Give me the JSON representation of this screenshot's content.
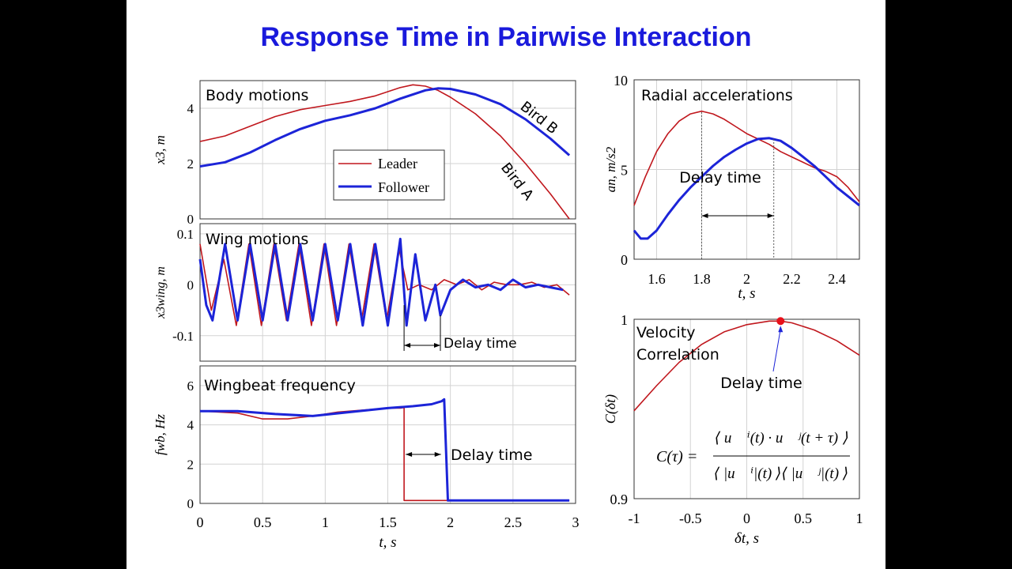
{
  "title": "Response Time in Pairwise Interaction",
  "colors": {
    "leader": "#c0171d",
    "follower": "#1c24d8",
    "title": "#1a1adc",
    "grid": "#d3d3d3"
  },
  "chart_data": [
    {
      "id": "body",
      "type": "line",
      "panel_title": "Body motions",
      "ylabel": "x3, m",
      "xlim": [
        0,
        3
      ],
      "ylim": [
        0,
        5
      ],
      "yticks": [
        "0",
        "2",
        "4"
      ],
      "legend": [
        "Leader",
        "Follower"
      ],
      "legend_position": "center",
      "annotations": [
        "Bird B",
        "Bird A"
      ],
      "grid": true,
      "series": [
        {
          "name": "Leader",
          "x": [
            0,
            0.2,
            0.4,
            0.6,
            0.8,
            1.0,
            1.2,
            1.4,
            1.6,
            1.7,
            1.8,
            1.9,
            2.0,
            2.2,
            2.4,
            2.6,
            2.8,
            2.95
          ],
          "y": [
            2.8,
            3.0,
            3.35,
            3.7,
            3.95,
            4.1,
            4.25,
            4.45,
            4.75,
            4.85,
            4.8,
            4.65,
            4.4,
            3.8,
            3.0,
            2.0,
            0.9,
            0.0
          ]
        },
        {
          "name": "Follower",
          "x": [
            0,
            0.2,
            0.4,
            0.6,
            0.8,
            1.0,
            1.2,
            1.4,
            1.6,
            1.8,
            1.9,
            2.0,
            2.2,
            2.4,
            2.6,
            2.8,
            2.95
          ],
          "y": [
            1.9,
            2.05,
            2.4,
            2.85,
            3.25,
            3.55,
            3.75,
            4.0,
            4.35,
            4.65,
            4.72,
            4.7,
            4.5,
            4.15,
            3.6,
            2.9,
            2.3
          ]
        }
      ]
    },
    {
      "id": "wing",
      "type": "line",
      "panel_title": "Wing motions",
      "ylabel": "x3wing, m",
      "xlim": [
        0,
        3
      ],
      "ylim": [
        -0.15,
        0.12
      ],
      "yticks": [
        "-0.1",
        "0",
        "0.1"
      ],
      "annotation": "Delay time",
      "delay": [
        1.63,
        1.92
      ],
      "grid": true,
      "series": [
        {
          "name": "Leader",
          "x": [
            0,
            0.09,
            0.19,
            0.29,
            0.39,
            0.49,
            0.59,
            0.69,
            0.79,
            0.89,
            0.99,
            1.09,
            1.19,
            1.29,
            1.39,
            1.49,
            1.59,
            1.66,
            1.75,
            1.85,
            1.95,
            2.05,
            2.15,
            2.25,
            2.35,
            2.45,
            2.55,
            2.65,
            2.75,
            2.85,
            2.95
          ],
          "y": [
            0.08,
            -0.05,
            0.05,
            -0.08,
            0.08,
            -0.08,
            0.08,
            -0.07,
            0.08,
            -0.08,
            0.08,
            -0.08,
            0.08,
            -0.07,
            0.08,
            -0.07,
            0.07,
            -0.01,
            0.0,
            -0.01,
            0.01,
            0.0,
            0.01,
            -0.01,
            0.005,
            0.0,
            0.0,
            0.005,
            -0.005,
            0.0,
            -0.02
          ]
        },
        {
          "name": "Follower",
          "x": [
            0,
            0.05,
            0.1,
            0.2,
            0.3,
            0.4,
            0.5,
            0.6,
            0.7,
            0.8,
            0.9,
            1.0,
            1.1,
            1.2,
            1.3,
            1.4,
            1.5,
            1.6,
            1.65,
            1.72,
            1.8,
            1.88,
            1.92,
            2.0,
            2.1,
            2.2,
            2.3,
            2.4,
            2.5,
            2.6,
            2.7,
            2.8,
            2.9
          ],
          "y": [
            0.05,
            -0.04,
            -0.07,
            0.08,
            -0.07,
            0.08,
            -0.07,
            0.08,
            -0.07,
            0.08,
            -0.07,
            0.08,
            -0.07,
            0.08,
            -0.08,
            0.08,
            -0.08,
            0.09,
            -0.08,
            0.06,
            -0.07,
            0.0,
            -0.06,
            -0.01,
            0.01,
            -0.005,
            0.0,
            -0.01,
            0.01,
            -0.005,
            0.0,
            -0.005,
            -0.01
          ]
        }
      ]
    },
    {
      "id": "freq",
      "type": "line",
      "panel_title": "Wingbeat frequency",
      "ylabel": "fwb, Hz",
      "xlabel": "t, s",
      "xlim": [
        0,
        3
      ],
      "ylim": [
        0,
        7
      ],
      "xticks": [
        "0",
        "0.5",
        "1",
        "1.5",
        "2",
        "2.5",
        "3"
      ],
      "yticks": [
        "0",
        "2",
        "4",
        "6"
      ],
      "annotation": "Delay time",
      "delay": [
        1.63,
        1.95
      ],
      "grid": true,
      "series": [
        {
          "name": "Leader",
          "x": [
            0,
            0.3,
            0.5,
            0.7,
            0.9,
            1.1,
            1.3,
            1.5,
            1.6,
            1.63,
            1.63,
            2.0,
            2.95
          ],
          "y": [
            4.7,
            4.6,
            4.3,
            4.3,
            4.45,
            4.65,
            4.75,
            4.85,
            4.85,
            4.88,
            0.15,
            0.15,
            0.15
          ]
        },
        {
          "name": "Follower",
          "x": [
            0,
            0.3,
            0.6,
            0.9,
            1.2,
            1.5,
            1.7,
            1.85,
            1.93,
            1.95,
            1.98,
            2.4,
            2.95
          ],
          "y": [
            4.7,
            4.7,
            4.55,
            4.45,
            4.65,
            4.85,
            4.95,
            5.05,
            5.2,
            5.3,
            0.15,
            0.15,
            0.15
          ]
        }
      ]
    },
    {
      "id": "radial",
      "type": "line",
      "panel_title": "Radial accelerations",
      "ylabel": "an, m/s2",
      "xlabel": "t, s",
      "xlim": [
        1.5,
        2.5
      ],
      "ylim": [
        0,
        10
      ],
      "xticks": [
        "1.6",
        "1.8",
        "2",
        "2.2",
        "2.4"
      ],
      "yticks": [
        "0",
        "5",
        "10"
      ],
      "annotation": "Delay time",
      "delay": [
        1.8,
        2.12
      ],
      "grid": true,
      "series": [
        {
          "name": "Leader",
          "x": [
            1.5,
            1.55,
            1.6,
            1.65,
            1.7,
            1.75,
            1.8,
            1.85,
            1.9,
            1.95,
            2.0,
            2.05,
            2.1,
            2.15,
            2.2,
            2.25,
            2.3,
            2.35,
            2.4,
            2.45,
            2.5
          ],
          "y": [
            3.0,
            4.6,
            6.0,
            7.0,
            7.7,
            8.1,
            8.25,
            8.1,
            7.8,
            7.4,
            7.0,
            6.7,
            6.4,
            6.0,
            5.7,
            5.4,
            5.1,
            4.9,
            4.6,
            4.0,
            3.2
          ]
        },
        {
          "name": "Follower",
          "x": [
            1.5,
            1.53,
            1.56,
            1.6,
            1.65,
            1.7,
            1.75,
            1.8,
            1.85,
            1.9,
            1.95,
            2.0,
            2.05,
            2.1,
            2.15,
            2.2,
            2.25,
            2.3,
            2.35,
            2.4,
            2.45,
            2.5
          ],
          "y": [
            1.6,
            1.15,
            1.15,
            1.6,
            2.5,
            3.3,
            4.0,
            4.6,
            5.2,
            5.7,
            6.1,
            6.45,
            6.7,
            6.75,
            6.6,
            6.2,
            5.7,
            5.2,
            4.6,
            4.0,
            3.5,
            3.0
          ]
        }
      ]
    },
    {
      "id": "corr",
      "type": "line",
      "panel_title": "Velocity Correlation",
      "ylabel": "C(δt)",
      "xlabel": "δt, s",
      "xlim": [
        -1,
        1
      ],
      "ylim": [
        0.9,
        1.0
      ],
      "xticks": [
        "-1",
        "-0.5",
        "0",
        "0.5",
        "1"
      ],
      "yticks": [
        "0.9",
        "1"
      ],
      "annotation": "Delay time",
      "peak": {
        "x": 0.3,
        "y": 0.999
      },
      "formula": "C(τ) = ⟨u⃗ⁱ(t) · u⃗ʲ(t+τ)⟩ / ⟨|u⃗ⁱ|(t)⟩⟨|u⃗ʲ|(t)⟩",
      "grid": true,
      "series": [
        {
          "name": "Leader",
          "x": [
            -1,
            -0.8,
            -0.6,
            -0.4,
            -0.2,
            0,
            0.2,
            0.3,
            0.4,
            0.6,
            0.8,
            1.0
          ],
          "y": [
            0.949,
            0.963,
            0.976,
            0.986,
            0.993,
            0.997,
            0.999,
            0.999,
            0.998,
            0.994,
            0.988,
            0.98
          ]
        }
      ]
    }
  ]
}
